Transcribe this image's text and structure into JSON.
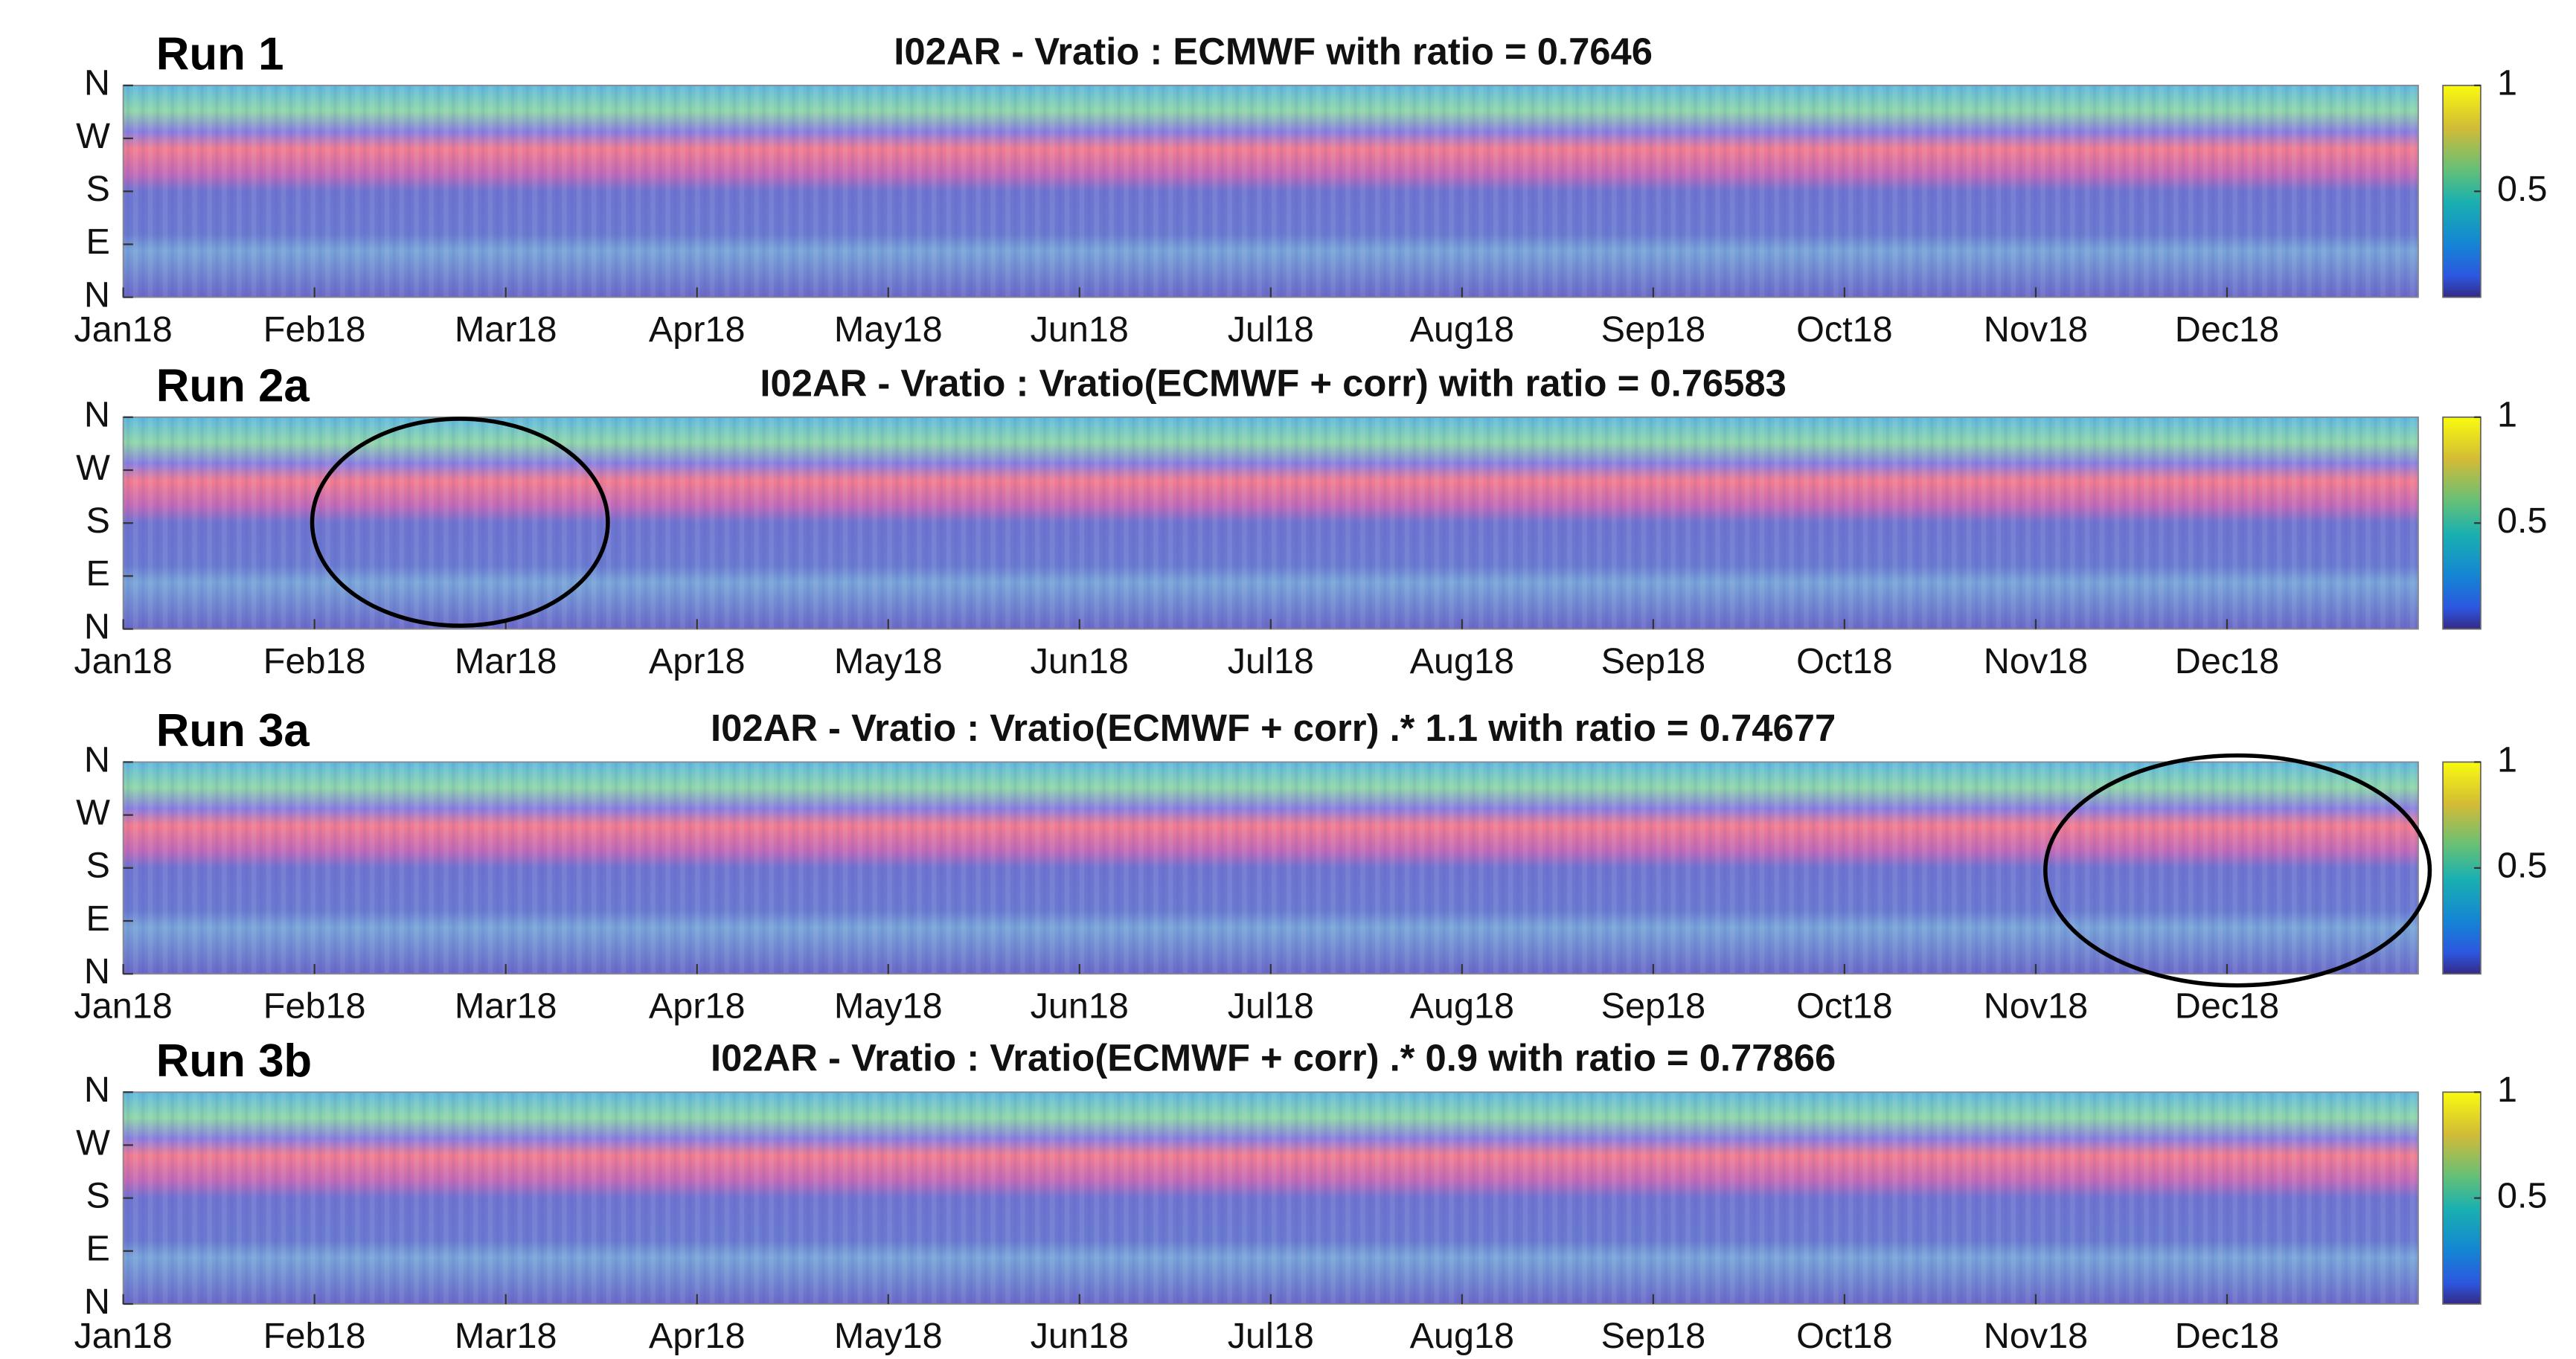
{
  "chart_data": [
    {
      "type": "heatmap",
      "label": "Run 1",
      "title": "I02AR - Vratio : ECMWF with ratio = 0.7646",
      "categories": [
        "Jan18",
        "Feb18",
        "Mar18",
        "Apr18",
        "May18",
        "Jun18",
        "Jul18",
        "Aug18",
        "Sep18",
        "Oct18",
        "Nov18",
        "Dec18"
      ],
      "ylim": [
        0,
        360
      ],
      "yticks": [
        {
          "value": 360,
          "label": "N"
        },
        {
          "value": 270,
          "label": "W"
        },
        {
          "value": 180,
          "label": "S"
        },
        {
          "value": 90,
          "label": "E"
        },
        {
          "value": 0,
          "label": "N"
        }
      ],
      "clim": [
        0,
        1
      ],
      "cticks": [
        1,
        0.5
      ]
    },
    {
      "type": "heatmap",
      "label": "Run 2a",
      "title": "I02AR - Vratio : Vratio(ECMWF + corr) with ratio = 0.76583",
      "categories": [
        "Jan18",
        "Feb18",
        "Mar18",
        "Apr18",
        "May18",
        "Jun18",
        "Jul18",
        "Aug18",
        "Sep18",
        "Oct18",
        "Nov18",
        "Dec18"
      ],
      "ylim": [
        0,
        360
      ],
      "yticks": [
        {
          "value": 360,
          "label": "N"
        },
        {
          "value": 270,
          "label": "W"
        },
        {
          "value": 180,
          "label": "S"
        },
        {
          "value": 90,
          "label": "E"
        },
        {
          "value": 0,
          "label": "N"
        }
      ],
      "clim": [
        0,
        1
      ],
      "cticks": [
        1,
        0.5
      ]
    },
    {
      "type": "heatmap",
      "label": "Run 3a",
      "title": "I02AR - Vratio : Vratio(ECMWF + corr) .* 1.1 with ratio = 0.74677",
      "categories": [
        "Jan18",
        "Feb18",
        "Mar18",
        "Apr18",
        "May18",
        "Jun18",
        "Jul18",
        "Aug18",
        "Sep18",
        "Oct18",
        "Nov18",
        "Dec18"
      ],
      "ylim": [
        0,
        360
      ],
      "yticks": [
        {
          "value": 360,
          "label": "N"
        },
        {
          "value": 270,
          "label": "W"
        },
        {
          "value": 180,
          "label": "S"
        },
        {
          "value": 90,
          "label": "E"
        },
        {
          "value": 0,
          "label": "N"
        }
      ],
      "clim": [
        0,
        1
      ],
      "cticks": [
        1,
        0.5
      ]
    },
    {
      "type": "heatmap",
      "label": "Run 3b",
      "title": "I02AR - Vratio : Vratio(ECMWF + corr) .* 0.9 with ratio = 0.77866",
      "categories": [
        "Jan18",
        "Feb18",
        "Mar18",
        "Apr18",
        "May18",
        "Jun18",
        "Jul18",
        "Aug18",
        "Sep18",
        "Oct18",
        "Nov18",
        "Dec18"
      ],
      "ylim": [
        0,
        360
      ],
      "yticks": [
        {
          "value": 360,
          "label": "N"
        },
        {
          "value": 270,
          "label": "W"
        },
        {
          "value": 180,
          "label": "S"
        },
        {
          "value": 90,
          "label": "E"
        },
        {
          "value": 0,
          "label": "N"
        }
      ],
      "clim": [
        0,
        1
      ],
      "cticks": [
        1,
        0.5
      ]
    }
  ]
}
